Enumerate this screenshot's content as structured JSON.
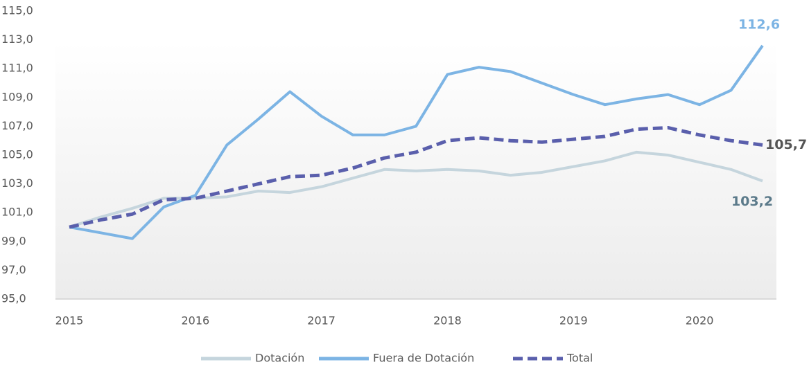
{
  "chart_data": {
    "type": "line",
    "categories": [
      "2015",
      null,
      null,
      null,
      "2016",
      null,
      null,
      null,
      "2017",
      null,
      null,
      null,
      "2018",
      null,
      null,
      null,
      "2019",
      null,
      null,
      null,
      "2020",
      null,
      null
    ],
    "ylim": [
      95,
      115
    ],
    "yticks": [
      {
        "value": 95,
        "label": "95,0"
      },
      {
        "value": 97,
        "label": "97,0"
      },
      {
        "value": 99,
        "label": "99,0"
      },
      {
        "value": 101,
        "label": "101,0"
      },
      {
        "value": 103,
        "label": "103,0"
      },
      {
        "value": 105,
        "label": "105,0"
      },
      {
        "value": 107,
        "label": "107,0"
      },
      {
        "value": 109,
        "label": "109,0"
      },
      {
        "value": 111,
        "label": "111,0"
      },
      {
        "value": 113,
        "label": "113,0"
      },
      {
        "value": 115,
        "label": "115,0"
      }
    ],
    "legend": "bottom",
    "series": [
      {
        "name": "Dotación",
        "color": "#c5d5dd",
        "dash": false,
        "label_color": "#5b7a8a",
        "values": [
          100,
          100.7,
          101.3,
          102.0,
          102.0,
          102.1,
          102.5,
          102.4,
          102.8,
          103.4,
          104.0,
          103.9,
          104.0,
          103.9,
          103.6,
          103.8,
          104.2,
          104.6,
          105.2,
          105.0,
          104.5,
          104.0,
          103.2
        ],
        "value_labels": [
          null,
          null,
          null,
          null,
          null,
          null,
          null,
          null,
          null,
          null,
          null,
          null,
          null,
          null,
          null,
          null,
          null,
          null,
          null,
          null,
          null,
          null,
          "103,2"
        ]
      },
      {
        "name": "Fuera de Dotación",
        "color": "#7cb4e4",
        "dash": false,
        "label_color": "#7cb4e4",
        "values": [
          100,
          99.6,
          99.2,
          101.4,
          102.2,
          105.7,
          107.5,
          109.4,
          107.7,
          106.4,
          106.4,
          107.0,
          110.6,
          111.1,
          110.8,
          110.0,
          109.2,
          108.5,
          108.9,
          109.2,
          108.5,
          109.5,
          112.6
        ],
        "value_labels": [
          null,
          null,
          null,
          null,
          null,
          null,
          null,
          null,
          null,
          null,
          null,
          null,
          null,
          null,
          null,
          null,
          null,
          null,
          null,
          null,
          null,
          null,
          "112,6"
        ]
      },
      {
        "name": "Total",
        "color": "#5a5fac",
        "dash": true,
        "label_color": "#555555",
        "values": [
          100,
          100.5,
          100.9,
          101.9,
          102.0,
          102.5,
          103.0,
          103.5,
          103.6,
          104.1,
          104.8,
          105.2,
          106.0,
          106.2,
          106.0,
          105.9,
          106.1,
          106.3,
          106.8,
          106.9,
          106.4,
          106.0,
          105.7
        ],
        "value_labels": [
          null,
          null,
          null,
          null,
          null,
          null,
          null,
          null,
          null,
          null,
          null,
          null,
          null,
          null,
          null,
          null,
          null,
          null,
          null,
          null,
          null,
          null,
          "105,7"
        ]
      }
    ]
  }
}
